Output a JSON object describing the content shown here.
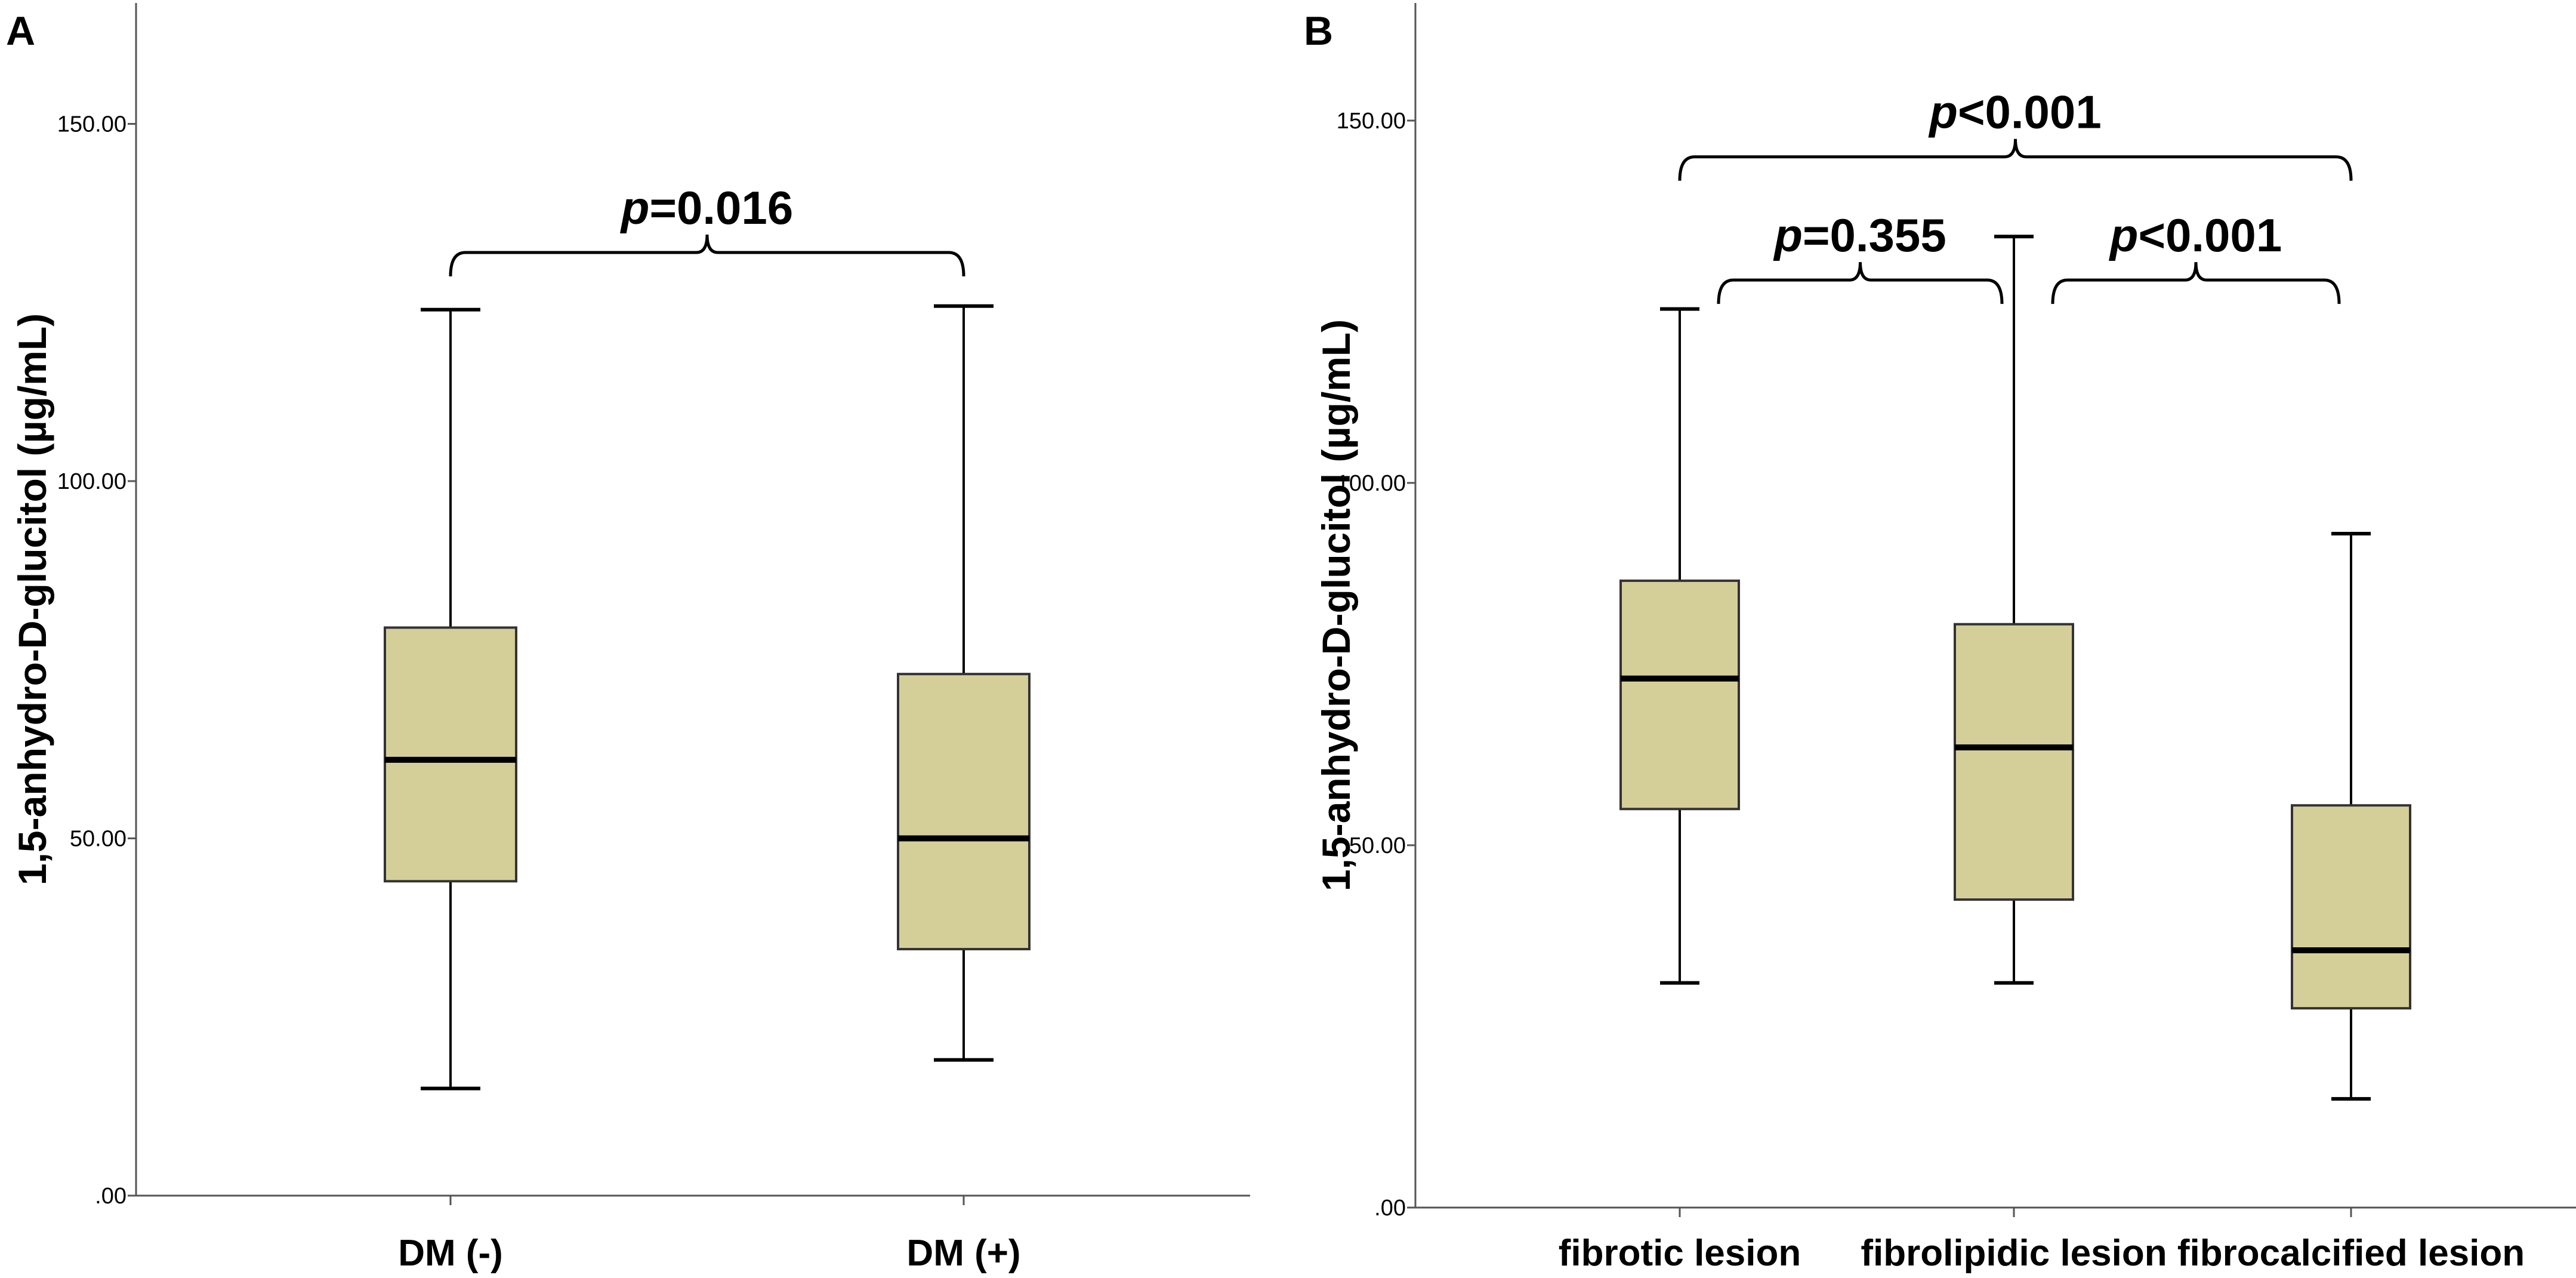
{
  "chart_data": [
    {
      "panel": "A",
      "type": "box",
      "ylabel": "1,5-anhydro-D-glucitol (µg/mL)",
      "ylim": [
        0,
        165
      ],
      "yticks": [
        0,
        50,
        100,
        150
      ],
      "ytick_labels": [
        ".00",
        "50.00",
        "100.00",
        "150.00"
      ],
      "box_color": "#d4cf99",
      "boxes": [
        {
          "label": "DM (-)",
          "min": 15,
          "q1": 44,
          "median": 61,
          "q3": 79.5,
          "max": 124
        },
        {
          "label": "DM (+)",
          "min": 19,
          "q1": 34.5,
          "median": 50,
          "q3": 73,
          "max": 124.5
        }
      ],
      "comparisons": [
        {
          "from": 0,
          "to": 1,
          "p_symbol": "p",
          "p_rest": "=0.016",
          "y": 132
        }
      ]
    },
    {
      "panel": "B",
      "type": "box",
      "ylabel": "1,5-anhydro-D-glucitol (µg/mL)",
      "ylim": [
        0,
        165
      ],
      "yticks": [
        0,
        50,
        100,
        150
      ],
      "ytick_labels": [
        ".00",
        "50.00",
        "100.00",
        "150.00"
      ],
      "box_color": "#d4cf99",
      "boxes": [
        {
          "label": "fibrotic lesion",
          "min": 31,
          "q1": 55,
          "median": 73,
          "q3": 86.5,
          "max": 124
        },
        {
          "label": "fibrolipidic lesion",
          "min": 31,
          "q1": 42.5,
          "median": 63.5,
          "q3": 80.5,
          "max": 134
        },
        {
          "label": "fibrocalcified lesion",
          "min": 15,
          "q1": 27.5,
          "median": 35.5,
          "q3": 55.5,
          "max": 93
        }
      ],
      "comparisons": [
        {
          "from": 0,
          "to": 2,
          "p_symbol": "p",
          "p_rest": "<0.001",
          "y": 145
        },
        {
          "from": 0,
          "to": 1,
          "p_symbol": "p",
          "p_rest": "=0.355",
          "y": 128,
          "inset": true
        },
        {
          "from": 1,
          "to": 2,
          "p_symbol": "p",
          "p_rest": "<0.001",
          "y": 128,
          "inset": true
        }
      ]
    }
  ]
}
